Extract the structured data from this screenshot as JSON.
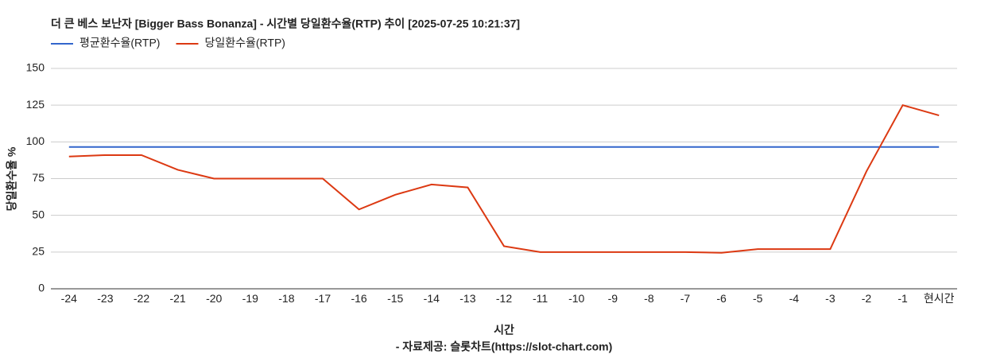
{
  "chart_data": {
    "type": "line",
    "title": "더 큰 베스 보난자 [Bigger Bass Bonanza] - 시간별 당일환수율(RTP) 추이 [2025-07-25 10:21:37]",
    "x_label": "시간",
    "y_label": "당일환수율 %",
    "source": "- 자료제공: 슬롯차트(https://slot-chart.com)",
    "categories": [
      "-24",
      "-23",
      "-22",
      "-21",
      "-20",
      "-19",
      "-18",
      "-17",
      "-16",
      "-15",
      "-14",
      "-13",
      "-12",
      "-11",
      "-10",
      "-9",
      "-8",
      "-7",
      "-6",
      "-5",
      "-4",
      "-3",
      "-2",
      "-1",
      "현시간"
    ],
    "series": [
      {
        "name": "평균환수율(RTP)",
        "color": "#3366cc",
        "values": [
          96.5,
          96.5,
          96.5,
          96.5,
          96.5,
          96.5,
          96.5,
          96.5,
          96.5,
          96.5,
          96.5,
          96.5,
          96.5,
          96.5,
          96.5,
          96.5,
          96.5,
          96.5,
          96.5,
          96.5,
          96.5,
          96.5,
          96.5,
          96.5,
          96.5
        ]
      },
      {
        "name": "당일환수율(RTP)",
        "color": "#dc3912",
        "values": [
          90,
          91,
          91,
          81,
          75,
          75,
          75,
          75,
          54,
          64,
          71,
          69,
          29,
          25,
          25,
          25,
          25,
          25,
          24.5,
          27,
          27,
          27,
          80,
          125,
          118
        ]
      }
    ],
    "ylim": [
      0,
      150
    ],
    "yticks": [
      0,
      25,
      50,
      75,
      100,
      125,
      150
    ],
    "grid": true,
    "legend": "top"
  }
}
